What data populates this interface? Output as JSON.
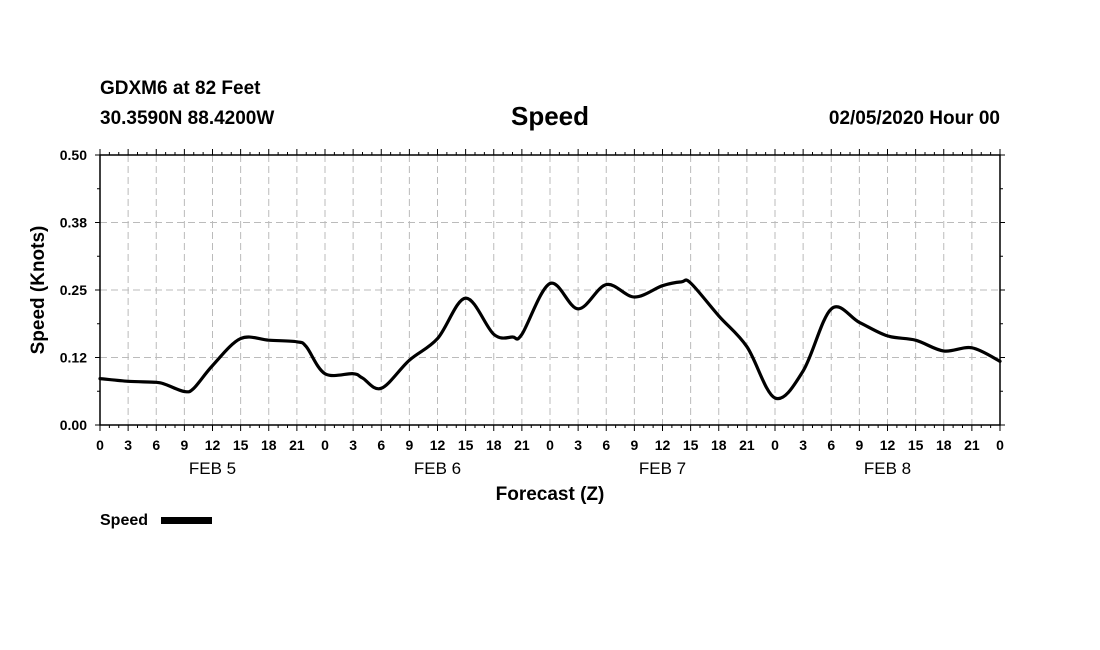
{
  "header": {
    "station": "GDXM6 at 82 Feet",
    "location": "30.3590N 88.4200W",
    "title": "Speed",
    "issued": "02/05/2020 Hour 00"
  },
  "chart_data": {
    "type": "line",
    "title": "Speed",
    "xlabel": "Forecast (Z)",
    "ylabel": "Speed (Knots)",
    "ylim": [
      0,
      0.5
    ],
    "yticks": [
      "0.00",
      "0.12",
      "0.25",
      "0.38",
      "0.50"
    ],
    "xlim": [
      "2020-02-05 00Z",
      "2020-02-09 00Z"
    ],
    "xtick_labels": [
      "0",
      "3",
      "6",
      "9",
      "12",
      "15",
      "18",
      "21",
      "0",
      "3",
      "6",
      "9",
      "12",
      "15",
      "18",
      "21",
      "0",
      "3",
      "6",
      "9",
      "12",
      "15",
      "18",
      "21",
      "0",
      "3",
      "6",
      "9",
      "12",
      "15",
      "18",
      "21",
      "0"
    ],
    "day_labels": [
      "FEB 5",
      "FEB 6",
      "FEB 7",
      "FEB 8"
    ],
    "grid": true,
    "legend_position": "bottom-left",
    "series": [
      {
        "name": "Speed",
        "color": "#000000",
        "x": [
          "2020-02-05 00Z",
          "2020-02-05 03Z",
          "2020-02-05 06Z",
          "2020-02-05 07Z",
          "2020-02-05 09Z",
          "2020-02-05 10Z",
          "2020-02-05 12Z",
          "2020-02-05 15Z",
          "2020-02-05 18Z",
          "2020-02-05 21Z",
          "2020-02-05 22Z",
          "2020-02-06 00Z",
          "2020-02-06 03Z",
          "2020-02-06 04Z",
          "2020-02-06 06Z",
          "2020-02-06 09Z",
          "2020-02-06 12Z",
          "2020-02-06 15Z",
          "2020-02-06 18Z",
          "2020-02-06 20Z",
          "2020-02-06 21Z",
          "2020-02-07 00Z",
          "2020-02-07 03Z",
          "2020-02-07 06Z",
          "2020-02-07 09Z",
          "2020-02-07 12Z",
          "2020-02-07 14Z",
          "2020-02-07 15Z",
          "2020-02-07 18Z",
          "2020-02-07 21Z",
          "2020-02-08 00Z",
          "2020-02-08 03Z",
          "2020-02-08 06Z",
          "2020-02-08 09Z",
          "2020-02-08 12Z",
          "2020-02-08 15Z",
          "2020-02-08 18Z",
          "2020-02-08 21Z",
          "2020-02-09 00Z"
        ],
        "values": [
          0.086,
          0.081,
          0.079,
          0.075,
          0.062,
          0.068,
          0.11,
          0.16,
          0.157,
          0.154,
          0.145,
          0.095,
          0.095,
          0.087,
          0.068,
          0.12,
          0.16,
          0.235,
          0.168,
          0.163,
          0.168,
          0.262,
          0.215,
          0.26,
          0.237,
          0.258,
          0.265,
          0.263,
          0.202,
          0.145,
          0.05,
          0.1,
          0.215,
          0.19,
          0.165,
          0.157,
          0.137,
          0.143,
          0.118
        ]
      }
    ]
  },
  "legend": {
    "label": "Speed"
  }
}
